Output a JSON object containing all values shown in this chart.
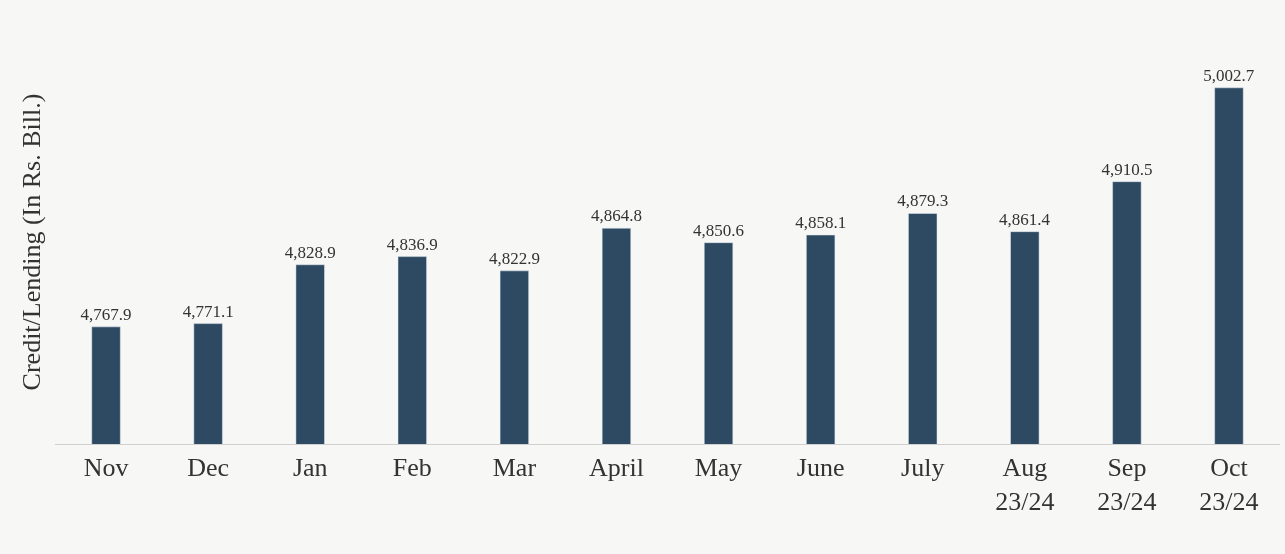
{
  "chart_data": {
    "type": "bar",
    "ylabel": "Credit/Lending (In Rs. Bill.)",
    "categories": [
      "Nov",
      "Dec",
      "Jan",
      "Feb",
      "Mar",
      "April",
      "May",
      "June",
      "July",
      "Aug\n23/24",
      "Sep\n23/24",
      "Oct\n23/24"
    ],
    "values": [
      4767.9,
      4771.1,
      4828.9,
      4836.9,
      4822.9,
      4864.8,
      4850.6,
      4858.1,
      4879.3,
      4861.4,
      4910.5,
      5002.7
    ],
    "value_labels": [
      "4,767.9",
      "4,771.1",
      "4,828.9",
      "4,836.9",
      "4,822.9",
      "4,864.8",
      "4,850.6",
      "4,858.1",
      "4,879.3",
      "4,861.4",
      "4,910.5",
      "5,002.7"
    ],
    "color": "#2e4a62",
    "grid": false,
    "legend": false,
    "tick_labels": "x"
  }
}
